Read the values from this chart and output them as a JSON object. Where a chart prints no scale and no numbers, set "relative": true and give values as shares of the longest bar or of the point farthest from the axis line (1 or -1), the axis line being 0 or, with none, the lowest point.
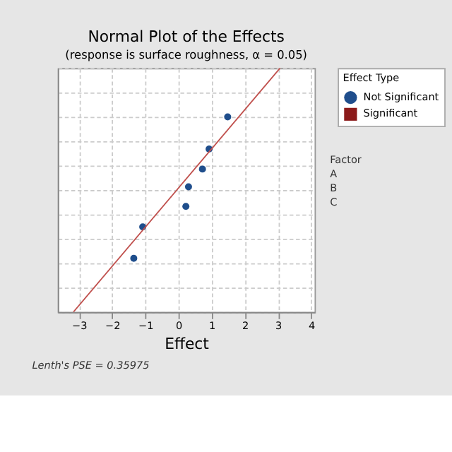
{
  "chart_data": {
    "type": "scatter",
    "title": "Normal Plot of the Effects",
    "subtitle": "(response is surface roughness, α = 0.05)",
    "xlabel": "Effect",
    "legend_title": "Effect Type",
    "relative": true,
    "xlim": [
      -3.64,
      4.1
    ],
    "xticks": [
      -3,
      -2,
      -1,
      0,
      1,
      2,
      3,
      4
    ],
    "grid": true,
    "legend": "right",
    "series": [
      {
        "name": "Not Significant",
        "color": "#1f4e8c",
        "marker": "circle",
        "x": [
          1.48,
          0.92,
          0.72,
          0.3,
          0.22,
          -1.08,
          -1.35
        ],
        "values": [
          0.8,
          0.668,
          0.586,
          0.513,
          0.433,
          0.349,
          0.22
        ]
      },
      {
        "name": "Significant",
        "color": "#8b1a1a",
        "marker": "square"
      },
      {
        "type": "line",
        "color": "#c0504d",
        "line_style": "solid",
        "x": [
          -3.17,
          3.06
        ],
        "values": [
          0,
          1
        ]
      }
    ],
    "annotations": [
      "Factor",
      "A",
      "B",
      "C",
      "Lenth's PSE = 0.35975"
    ]
  }
}
